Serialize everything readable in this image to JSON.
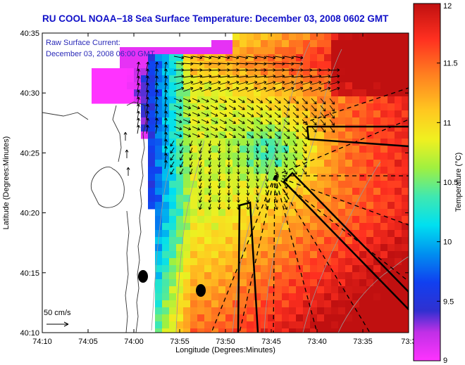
{
  "title": "RU COOL  NOAA−18  Sea Surface Temperature:  December 03, 2008 0602 GMT",
  "chart_data": {
    "type": "heatmap",
    "overlay": "current vectors",
    "title": "RU COOL  NOAA−18  Sea Surface Temperature:  December 03, 2008 0602 GMT",
    "annotation": [
      "Raw Surface Current:",
      "December 03, 2008 06:00 GMT"
    ],
    "xlabel": "Longitude (Degrees:Minutes)",
    "ylabel": "Latitude (Degrees:Minutes)",
    "x_ticks": [
      "74:10",
      "74:05",
      "74:00",
      "73:55",
      "73:50",
      "73:45",
      "73:40",
      "73:35",
      "73:3"
    ],
    "y_ticks": [
      "40:35",
      "40:30",
      "40:25",
      "40:20",
      "40:15",
      "40:10"
    ],
    "xlim_minutes_west": [
      70,
      30
    ],
    "ylim_minutes_north": [
      10,
      35
    ],
    "colorbar": {
      "label": "Temperature (°C)",
      "range": [
        9,
        12
      ],
      "ticks": [
        "12",
        "11.5",
        "11",
        "10.5",
        "10",
        "9.5",
        "9"
      ]
    },
    "scale_label": "50 cm/s",
    "scale_cm_s": 50
  }
}
